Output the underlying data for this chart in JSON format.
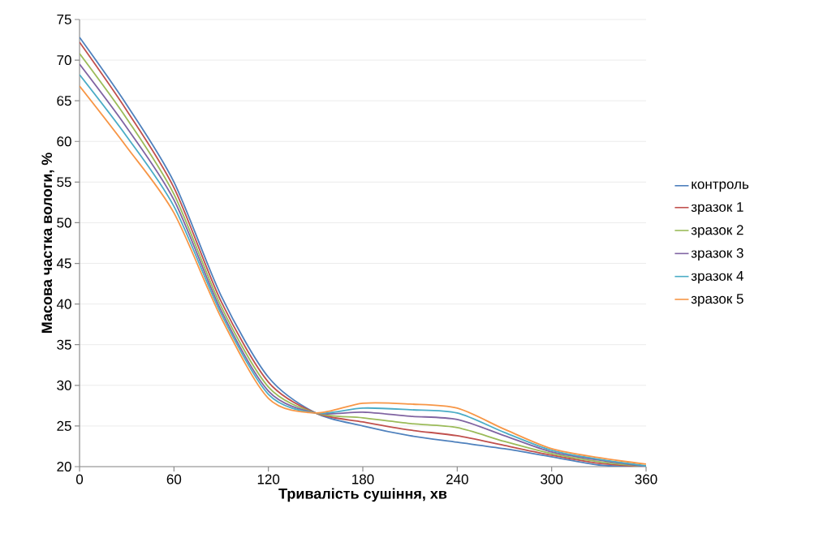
{
  "chart_data": {
    "type": "line",
    "xlabel": "Тривалість сушіння, хв",
    "ylabel": "Масова частка вологи, %",
    "x": [
      0,
      30,
      60,
      90,
      120,
      150,
      180,
      210,
      240,
      270,
      300,
      330,
      360
    ],
    "series": [
      {
        "name": "контроль",
        "color": "#4f81bd",
        "values": [
          72.8,
          64.5,
          55,
          41,
          31,
          26.6,
          25,
          23.8,
          23,
          22.2,
          21.2,
          20.2,
          20
        ]
      },
      {
        "name": "зразок 1",
        "color": "#c0504d",
        "values": [
          72.2,
          63.8,
          54.3,
          40.3,
          30.4,
          26.6,
          25.5,
          24.5,
          23.8,
          22.6,
          21.4,
          20.4,
          20
        ]
      },
      {
        "name": "зразок 2",
        "color": "#9bbb59",
        "values": [
          70.8,
          62.8,
          53.5,
          39.7,
          29.8,
          26.6,
          26,
          25.3,
          24.8,
          23.1,
          21.6,
          20.6,
          20
        ]
      },
      {
        "name": "зразок 3",
        "color": "#8064a2",
        "values": [
          69.5,
          61.7,
          52.8,
          39.2,
          29.3,
          26.6,
          26.7,
          26.2,
          25.8,
          23.8,
          21.8,
          20.8,
          20
        ]
      },
      {
        "name": "зразок 4",
        "color": "#4bacc6",
        "values": [
          68.2,
          60.6,
          52,
          38.8,
          28.9,
          26.6,
          27.2,
          27,
          26.6,
          24.2,
          22,
          20.9,
          20.1
        ]
      },
      {
        "name": "зразок 5",
        "color": "#f79646",
        "values": [
          66.8,
          59.3,
          51.2,
          38.3,
          28.4,
          26.6,
          27.8,
          27.7,
          27.2,
          24.6,
          22.2,
          21.1,
          20.3
        ]
      }
    ],
    "xlim": [
      0,
      360
    ],
    "xticks": [
      0,
      60,
      120,
      180,
      240,
      300,
      360
    ],
    "ylim": [
      20,
      75
    ],
    "yticks": [
      20,
      25,
      30,
      35,
      40,
      45,
      50,
      55,
      60,
      65,
      70,
      75
    ],
    "grid": "y",
    "legend": "right"
  }
}
